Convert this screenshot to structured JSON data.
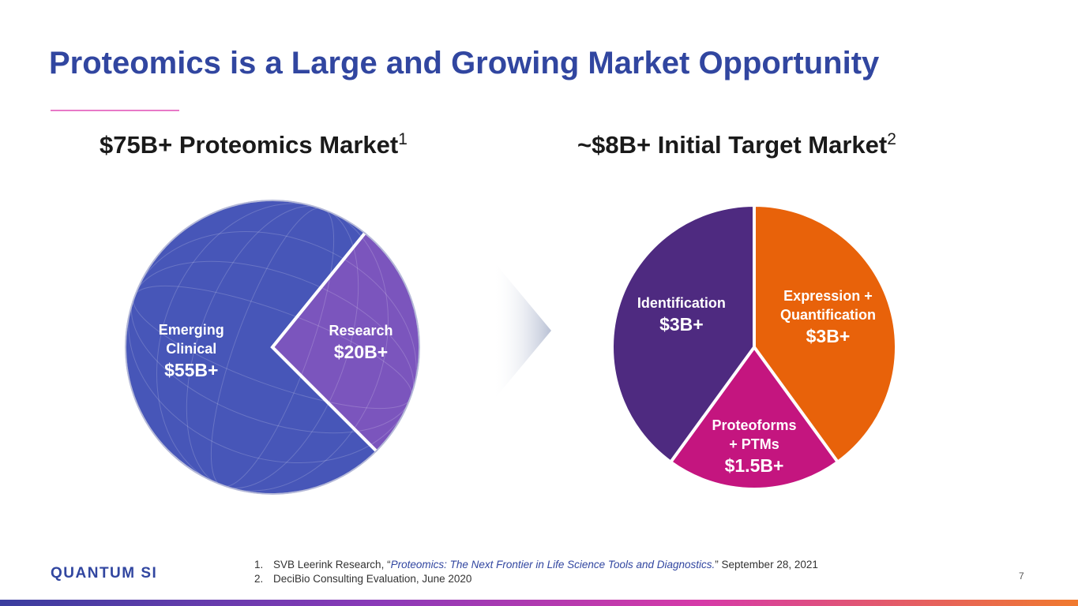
{
  "title": "Proteomics is a Large and Growing Market Opportunity",
  "chart_data": [
    {
      "type": "pie",
      "heading": "$75B+ Proteomics Market",
      "footnote_ref": "1",
      "total_label": "$75B+",
      "slices": [
        {
          "label": "Emerging Clinical",
          "value_label": "$55B+",
          "value": 55,
          "color": "#4756b8"
        },
        {
          "label": "Research",
          "value_label": "$20B+",
          "value": 20,
          "color": "#7b55bd"
        }
      ]
    },
    {
      "type": "pie",
      "heading": "~$8B+ Initial Target Market",
      "footnote_ref": "2",
      "total_label": "~$8B+",
      "slices": [
        {
          "label": "Expression + Quantification",
          "value_label": "$3B+",
          "value": 3,
          "color": "#e8620a"
        },
        {
          "label": "Proteoforms + PTMs",
          "value_label": "$1.5B+",
          "value": 1.5,
          "color": "#c4157f"
        },
        {
          "label": "Identification",
          "value_label": "$3B+",
          "value": 3,
          "color": "#4e2a80"
        }
      ]
    }
  ],
  "footer": {
    "logo_text": "QUANTUM SI",
    "footnotes": [
      {
        "num": "1.",
        "pre": "SVB Leerink Research, “",
        "em": "Proteomics: The Next Frontier in Life Science Tools and Diagnostics.",
        "post": "” September 28, 2021"
      },
      {
        "num": "2.",
        "pre": "DeciBio Consulting Evaluation, June 2020",
        "em": "",
        "post": ""
      }
    ],
    "page_number": "7"
  },
  "colors": {
    "title": "#3146a0",
    "accent_rule": "#e879c7",
    "arrow": "#b8c0d4"
  }
}
